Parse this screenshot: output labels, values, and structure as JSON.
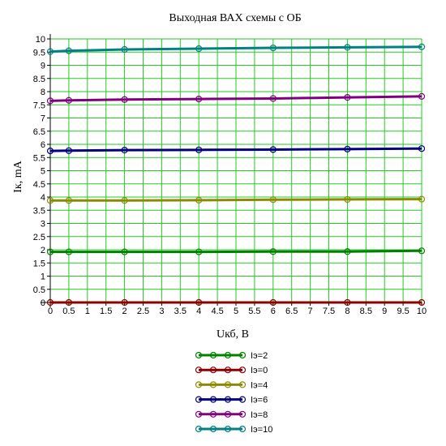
{
  "chart_data": {
    "type": "line",
    "title": "Выходная ВАХ схемы с ОБ",
    "xlabel": "Uкб, В",
    "ylabel": "Iк, mA",
    "xlim": [
      0,
      10
    ],
    "ylim": [
      0,
      10
    ],
    "x_ticks": [
      "0",
      "0.5",
      "1",
      "1.5",
      "2",
      "2.5",
      "3",
      "3.5",
      "4",
      "4.5",
      "5",
      "5.5",
      "6",
      "6.5",
      "7",
      "7.5",
      "8",
      "8.5",
      "9",
      "9.5",
      "10"
    ],
    "y_ticks": [
      "0",
      "0.5",
      "1",
      "1.5",
      "2",
      "2.5",
      "3",
      "3.5",
      "4",
      "4.5",
      "5",
      "5.5",
      "6",
      "6.5",
      "7",
      "7.5",
      "8",
      "8.5",
      "9",
      "9.5",
      "10"
    ],
    "grid": true,
    "grid_color": "#22cc22",
    "legend_position": "bottom",
    "x": [
      0,
      0.5,
      2,
      4,
      6,
      8,
      10
    ],
    "series": [
      {
        "name": "Iэ=2",
        "color": "#008000",
        "values": [
          1.92,
          1.92,
          1.92,
          1.92,
          1.93,
          1.93,
          1.96
        ]
      },
      {
        "name": "Iэ=0",
        "color": "#8b0000",
        "values": [
          0.0,
          0.0,
          0.0,
          0.0,
          0.0,
          0.0,
          0.0
        ]
      },
      {
        "name": "Iэ=4",
        "color": "#8b8b00",
        "values": [
          3.87,
          3.87,
          3.87,
          3.88,
          3.9,
          3.91,
          3.92
        ]
      },
      {
        "name": "Iэ=6",
        "color": "#00007f",
        "values": [
          5.75,
          5.76,
          5.78,
          5.79,
          5.8,
          5.82,
          5.84
        ]
      },
      {
        "name": "Iэ=8",
        "color": "#800080",
        "values": [
          7.65,
          7.67,
          7.7,
          7.72,
          7.74,
          7.78,
          7.82
        ]
      },
      {
        "name": "Iэ=10",
        "color": "#008080",
        "values": [
          9.52,
          9.55,
          9.6,
          9.63,
          9.66,
          9.68,
          9.7
        ]
      }
    ]
  }
}
